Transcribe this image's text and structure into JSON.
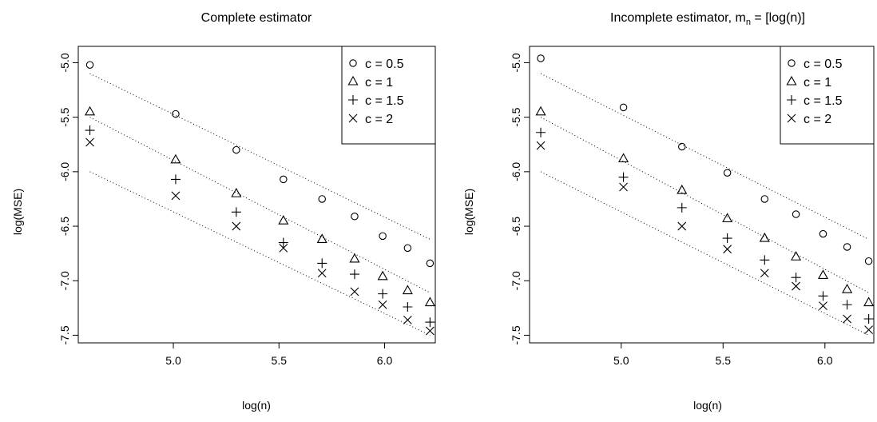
{
  "chart_data": [
    {
      "type": "scatter",
      "title": "Complete estimator",
      "xlabel": "log(n)",
      "ylabel": "log(MSE)",
      "xlim": [
        4.55,
        6.24
      ],
      "ylim": [
        -7.57,
        -4.85
      ],
      "x_ticks": [
        5.0,
        5.5,
        6.0
      ],
      "x_tick_labels": [
        "5.0",
        "5.5",
        "6.0"
      ],
      "y_ticks": [
        -5.0,
        -5.5,
        -6.0,
        -6.5,
        -7.0,
        -7.5
      ],
      "y_tick_labels": [
        "-5.0",
        "-5.5",
        "-6.0",
        "-6.5",
        "-7.0",
        "-7.5"
      ],
      "grid": false,
      "legend_position": "top-right",
      "x": [
        4.605,
        5.011,
        5.298,
        5.521,
        5.704,
        5.858,
        5.991,
        6.109,
        6.215
      ],
      "series": [
        {
          "name": "c = 0.5",
          "marker": "circle",
          "values": [
            -5.02,
            -5.47,
            -5.8,
            -6.07,
            -6.25,
            -6.41,
            -6.59,
            -6.7,
            -6.84
          ]
        },
        {
          "name": "c = 1",
          "marker": "triangle",
          "values": [
            -5.45,
            -5.89,
            -6.2,
            -6.45,
            -6.62,
            -6.8,
            -6.96,
            -7.09,
            -7.2
          ]
        },
        {
          "name": "c = 1.5",
          "marker": "plus",
          "values": [
            -5.62,
            -6.07,
            -6.37,
            -6.65,
            -6.84,
            -6.94,
            -7.12,
            -7.24,
            -7.38
          ]
        },
        {
          "name": "c = 2",
          "marker": "cross",
          "values": [
            -5.73,
            -6.22,
            -6.5,
            -6.7,
            -6.93,
            -7.1,
            -7.22,
            -7.36,
            -7.46
          ]
        }
      ],
      "reference_lines": [
        {
          "style": "dotted",
          "x": [
            4.605,
            6.215
          ],
          "y": [
            -5.1,
            -6.62
          ]
        },
        {
          "style": "dotted",
          "x": [
            4.605,
            6.215
          ],
          "y": [
            -5.5,
            -7.11
          ]
        },
        {
          "style": "dotted",
          "x": [
            4.605,
            6.215
          ],
          "y": [
            -6.0,
            -7.5
          ]
        }
      ]
    },
    {
      "type": "scatter",
      "title": "Incomplete estimator, m",
      "title_sub": "n",
      "title_rest": " = [log(n)]",
      "xlabel": "log(n)",
      "ylabel": "log(MSE)",
      "xlim": [
        4.55,
        6.24
      ],
      "ylim": [
        -7.57,
        -4.85
      ],
      "x_ticks": [
        5.0,
        5.5,
        6.0
      ],
      "x_tick_labels": [
        "5.0",
        "5.5",
        "6.0"
      ],
      "y_ticks": [
        -5.0,
        -5.5,
        -6.0,
        -6.5,
        -7.0,
        -7.5
      ],
      "y_tick_labels": [
        "-5.0",
        "-5.5",
        "-6.0",
        "-6.5",
        "-7.0",
        "-7.5"
      ],
      "grid": false,
      "legend_position": "top-right",
      "x": [
        4.605,
        5.011,
        5.298,
        5.521,
        5.704,
        5.858,
        5.991,
        6.109,
        6.215
      ],
      "series": [
        {
          "name": "c = 0.5",
          "marker": "circle",
          "values": [
            -4.96,
            -5.41,
            -5.77,
            -6.01,
            -6.25,
            -6.39,
            -6.57,
            -6.69,
            -6.82
          ]
        },
        {
          "name": "c = 1",
          "marker": "triangle",
          "values": [
            -5.45,
            -5.88,
            -6.17,
            -6.43,
            -6.61,
            -6.78,
            -6.95,
            -7.08,
            -7.2
          ]
        },
        {
          "name": "c = 1.5",
          "marker": "plus",
          "values": [
            -5.64,
            -6.05,
            -6.33,
            -6.61,
            -6.81,
            -6.97,
            -7.14,
            -7.22,
            -7.35
          ]
        },
        {
          "name": "c = 2",
          "marker": "cross",
          "values": [
            -5.76,
            -6.14,
            -6.5,
            -6.71,
            -6.93,
            -7.05,
            -7.23,
            -7.35,
            -7.45
          ]
        }
      ],
      "reference_lines": [
        {
          "style": "dotted",
          "x": [
            4.605,
            6.215
          ],
          "y": [
            -5.1,
            -6.62
          ]
        },
        {
          "style": "dotted",
          "x": [
            4.605,
            6.215
          ],
          "y": [
            -5.5,
            -7.11
          ]
        },
        {
          "style": "dotted",
          "x": [
            4.605,
            6.215
          ],
          "y": [
            -6.0,
            -7.5
          ]
        }
      ]
    }
  ]
}
